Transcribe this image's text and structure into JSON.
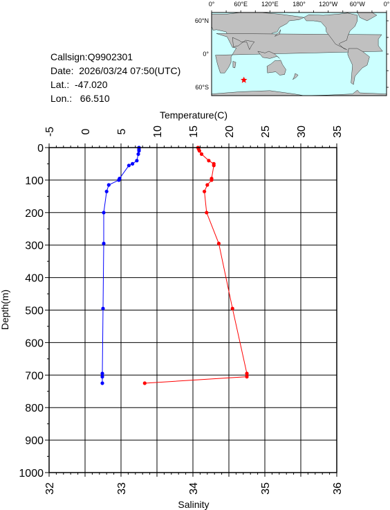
{
  "info": {
    "callsign": "Callsign:Q9902301",
    "date": "Date:  2026/03/24 07:50(UTC)",
    "lat": "Lat.:  -47.020",
    "lon": "Lon.:   66.510"
  },
  "map": {
    "top_labels": [
      "0°",
      "60°E",
      "120°E",
      "180°",
      "120°W",
      "60°W",
      "0°"
    ],
    "side_labels": [
      "60°N",
      "0°",
      "60°S"
    ],
    "ocean_color": "#ccffff",
    "land_color": "#c0c0c0",
    "marker_color": "#ff0000",
    "marker_lon": 66.51,
    "marker_lat": -47.02
  },
  "chart_data": {
    "type": "line",
    "title": "",
    "ylabel": "Depth(m)",
    "ylim": [
      0,
      1000
    ],
    "y_ticks": [
      "0",
      "100",
      "200",
      "300",
      "400",
      "500",
      "600",
      "700",
      "800",
      "900",
      "1000"
    ],
    "grid": true,
    "temperature_axis": {
      "label": "Temperature(C)",
      "range": [
        -5,
        35
      ],
      "ticks": [
        "-5",
        "0",
        "5",
        "10",
        "15",
        "20",
        "25",
        "30",
        "35"
      ],
      "position": "top"
    },
    "salinity_axis": {
      "label": "Salinity",
      "range": [
        32,
        36
      ],
      "ticks": [
        "32",
        "33",
        "34",
        "35",
        "36"
      ],
      "position": "bottom"
    },
    "series": [
      {
        "axis": "temperature",
        "color": "#0000ff",
        "depth": [
          0,
          5,
          10,
          20,
          40,
          50,
          55,
          95,
          100,
          115,
          135,
          200,
          295,
          495,
          695,
          705,
          725
        ],
        "values": [
          7.5,
          7.5,
          7.5,
          7.4,
          7.2,
          6.6,
          6.1,
          4.8,
          4.7,
          3.3,
          3.0,
          2.6,
          2.6,
          2.5,
          2.4,
          2.4,
          2.4
        ]
      },
      {
        "axis": "salinity",
        "color": "#ff0000",
        "depth": [
          0,
          5,
          10,
          20,
          40,
          50,
          55,
          95,
          100,
          115,
          135,
          200,
          295,
          495,
          695,
          705,
          725
        ],
        "values": [
          34.07,
          34.08,
          34.09,
          34.12,
          34.22,
          34.29,
          34.29,
          34.26,
          34.26,
          34.2,
          34.16,
          34.19,
          34.36,
          34.55,
          34.75,
          34.75,
          33.33
        ]
      }
    ]
  }
}
